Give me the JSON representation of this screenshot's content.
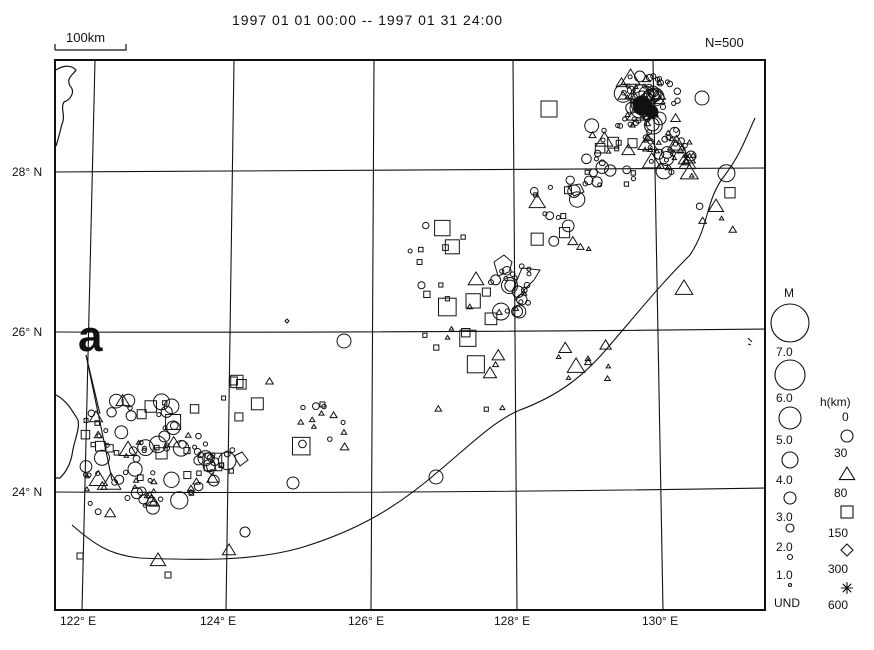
{
  "map": {
    "title": "1997 01 01 00:00 -- 1997 01 31 24:00",
    "count": "N=500",
    "scale_label": "100km",
    "annotation_letter": "a",
    "lat_labels": [
      "28° N",
      "26° N",
      "24° N"
    ],
    "lon_labels": [
      "122° E",
      "124° E",
      "126° E",
      "128° E",
      "130° E"
    ]
  },
  "legend": {
    "magnitude": {
      "title": "M",
      "labels": [
        "7.0",
        "6.0",
        "5.0",
        "4.0",
        "3.0",
        "2.0",
        "1.0",
        "UND"
      ]
    },
    "depth": {
      "title": "h(km)",
      "labels": [
        "0",
        "30",
        "80",
        "150",
        "300",
        "600"
      ],
      "symbols": [
        "circle",
        "triangle",
        "square",
        "diamond",
        "asterisk"
      ]
    }
  },
  "style": {
    "ink": "#111111",
    "paper": "#ffffff"
  }
}
